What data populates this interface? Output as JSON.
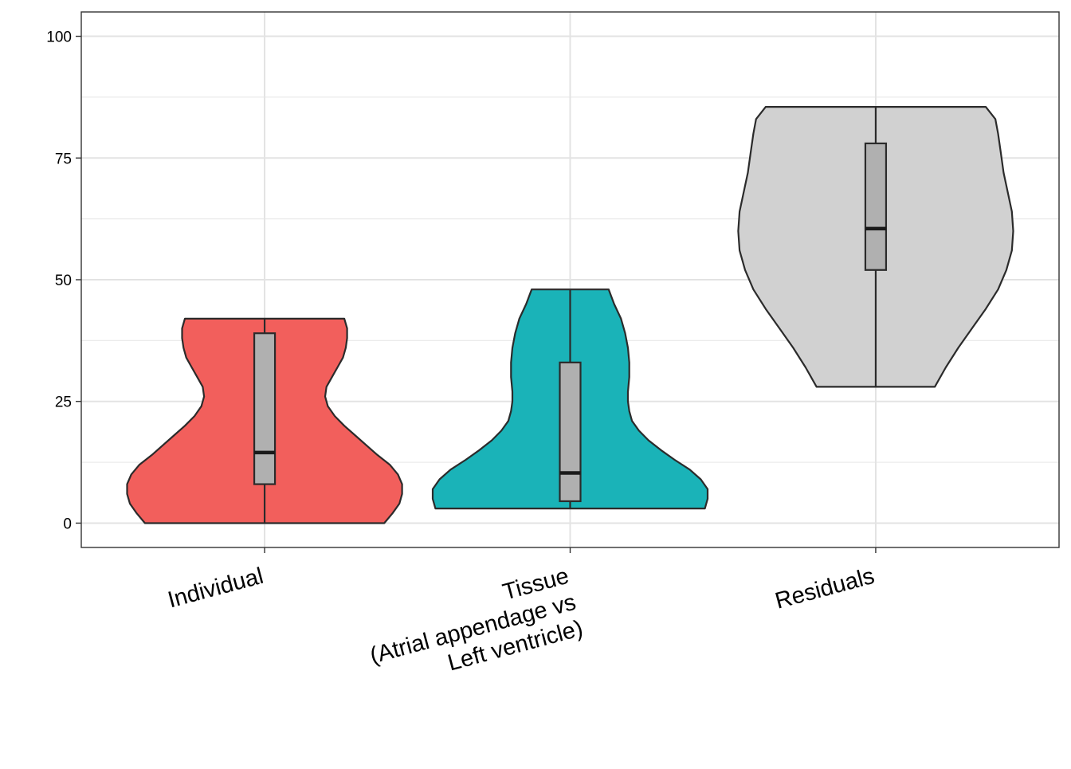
{
  "chart_data": {
    "type": "violin",
    "title": "",
    "xlabel": "",
    "ylabel": "",
    "ylim": [
      -5,
      105
    ],
    "y_ticks": [
      0,
      25,
      50,
      75,
      100
    ],
    "y_tick_labels": [
      "0",
      "25",
      "50",
      "75",
      "100"
    ],
    "grid": true,
    "legend": "none",
    "categories": [
      {
        "label_lines": [
          "Individual"
        ],
        "fill": "#F25F5C",
        "min": 0,
        "max": 42,
        "box": {
          "q1": 8,
          "median": 14.5,
          "q3": 39
        },
        "density": [
          [
            0,
            0.87
          ],
          [
            2,
            0.93
          ],
          [
            4,
            0.98
          ],
          [
            6,
            1.0
          ],
          [
            8,
            1.0
          ],
          [
            10,
            0.97
          ],
          [
            12,
            0.91
          ],
          [
            14,
            0.82
          ],
          [
            16,
            0.74
          ],
          [
            18,
            0.66
          ],
          [
            20,
            0.58
          ],
          [
            22,
            0.51
          ],
          [
            24,
            0.46
          ],
          [
            26,
            0.44
          ],
          [
            28,
            0.45
          ],
          [
            30,
            0.49
          ],
          [
            32,
            0.53
          ],
          [
            34,
            0.57
          ],
          [
            36,
            0.59
          ],
          [
            38,
            0.6
          ],
          [
            40,
            0.6
          ],
          [
            42,
            0.58
          ]
        ]
      },
      {
        "label_lines": [
          "Tissue",
          "(Atrial appendage vs",
          "Left ventricle)"
        ],
        "fill": "#1AB3B8",
        "min": 3,
        "max": 48,
        "box": {
          "q1": 4.5,
          "median": 10.3,
          "q3": 33
        },
        "density": [
          [
            3,
            0.98
          ],
          [
            5,
            1.0
          ],
          [
            7,
            1.0
          ],
          [
            9,
            0.95
          ],
          [
            11,
            0.87
          ],
          [
            13,
            0.76
          ],
          [
            15,
            0.66
          ],
          [
            17,
            0.57
          ],
          [
            19,
            0.5
          ],
          [
            21,
            0.45
          ],
          [
            23,
            0.43
          ],
          [
            25,
            0.42
          ],
          [
            27,
            0.42
          ],
          [
            30,
            0.43
          ],
          [
            33,
            0.43
          ],
          [
            36,
            0.42
          ],
          [
            39,
            0.4
          ],
          [
            42,
            0.37
          ],
          [
            45,
            0.32
          ],
          [
            48,
            0.28
          ]
        ]
      },
      {
        "label_lines": [
          "Residuals"
        ],
        "fill": "#D1D1D1",
        "min": 28,
        "max": 85.5,
        "box": {
          "q1": 52,
          "median": 60.5,
          "q3": 78
        },
        "density": [
          [
            28,
            0.43
          ],
          [
            32,
            0.51
          ],
          [
            36,
            0.6
          ],
          [
            40,
            0.7
          ],
          [
            44,
            0.8
          ],
          [
            48,
            0.89
          ],
          [
            52,
            0.95
          ],
          [
            56,
            0.99
          ],
          [
            60,
            1.0
          ],
          [
            64,
            0.99
          ],
          [
            68,
            0.96
          ],
          [
            72,
            0.93
          ],
          [
            76,
            0.91
          ],
          [
            80,
            0.89
          ],
          [
            83,
            0.87
          ],
          [
            85.5,
            0.8
          ]
        ]
      }
    ]
  }
}
